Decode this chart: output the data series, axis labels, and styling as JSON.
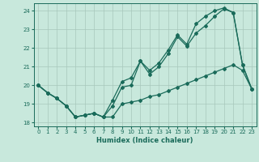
{
  "xlabel": "Humidex (Indice chaleur)",
  "xlim": [
    -0.5,
    23.5
  ],
  "ylim": [
    17.8,
    24.4
  ],
  "yticks": [
    18,
    19,
    20,
    21,
    22,
    23,
    24
  ],
  "xticks": [
    0,
    1,
    2,
    3,
    4,
    5,
    6,
    7,
    8,
    9,
    10,
    11,
    12,
    13,
    14,
    15,
    16,
    17,
    18,
    19,
    20,
    21,
    22,
    23
  ],
  "bg_color": "#c8e8dc",
  "grid_color": "#a8c8bc",
  "line_color": "#1a6b5a",
  "line1_x": [
    0,
    1,
    2,
    3,
    4,
    5,
    6,
    7,
    8,
    9,
    10,
    11,
    12,
    13,
    14,
    15,
    16,
    17,
    18,
    19,
    20,
    21,
    22,
    23
  ],
  "line1_y": [
    20.0,
    19.6,
    19.3,
    18.9,
    18.3,
    18.4,
    18.5,
    18.3,
    18.3,
    19.0,
    19.1,
    19.2,
    19.4,
    19.5,
    19.7,
    19.9,
    20.1,
    20.3,
    20.5,
    20.7,
    20.9,
    21.1,
    20.8,
    19.8
  ],
  "line2_x": [
    0,
    1,
    2,
    3,
    4,
    5,
    6,
    7,
    8,
    9,
    10,
    11,
    12,
    13,
    14,
    15,
    16,
    17,
    18,
    19,
    20,
    21,
    22,
    23
  ],
  "line2_y": [
    20.0,
    19.6,
    19.3,
    18.9,
    18.3,
    18.4,
    18.5,
    18.3,
    18.9,
    19.9,
    20.0,
    21.3,
    20.6,
    21.0,
    21.7,
    22.6,
    22.1,
    22.8,
    23.2,
    23.7,
    24.1,
    23.9,
    21.1,
    19.8
  ],
  "line3_x": [
    0,
    1,
    2,
    3,
    4,
    5,
    6,
    7,
    8,
    9,
    10,
    11,
    12,
    13,
    14,
    15,
    16,
    17,
    18,
    19,
    20,
    21,
    22,
    23
  ],
  "line3_y": [
    20.0,
    19.6,
    19.3,
    18.9,
    18.3,
    18.4,
    18.5,
    18.3,
    19.2,
    20.2,
    20.4,
    21.3,
    20.8,
    21.2,
    21.9,
    22.7,
    22.2,
    23.3,
    23.7,
    24.0,
    24.15,
    23.9,
    21.1,
    19.8
  ],
  "marker": "D",
  "marker_size": 2.0,
  "linewidth": 0.9
}
